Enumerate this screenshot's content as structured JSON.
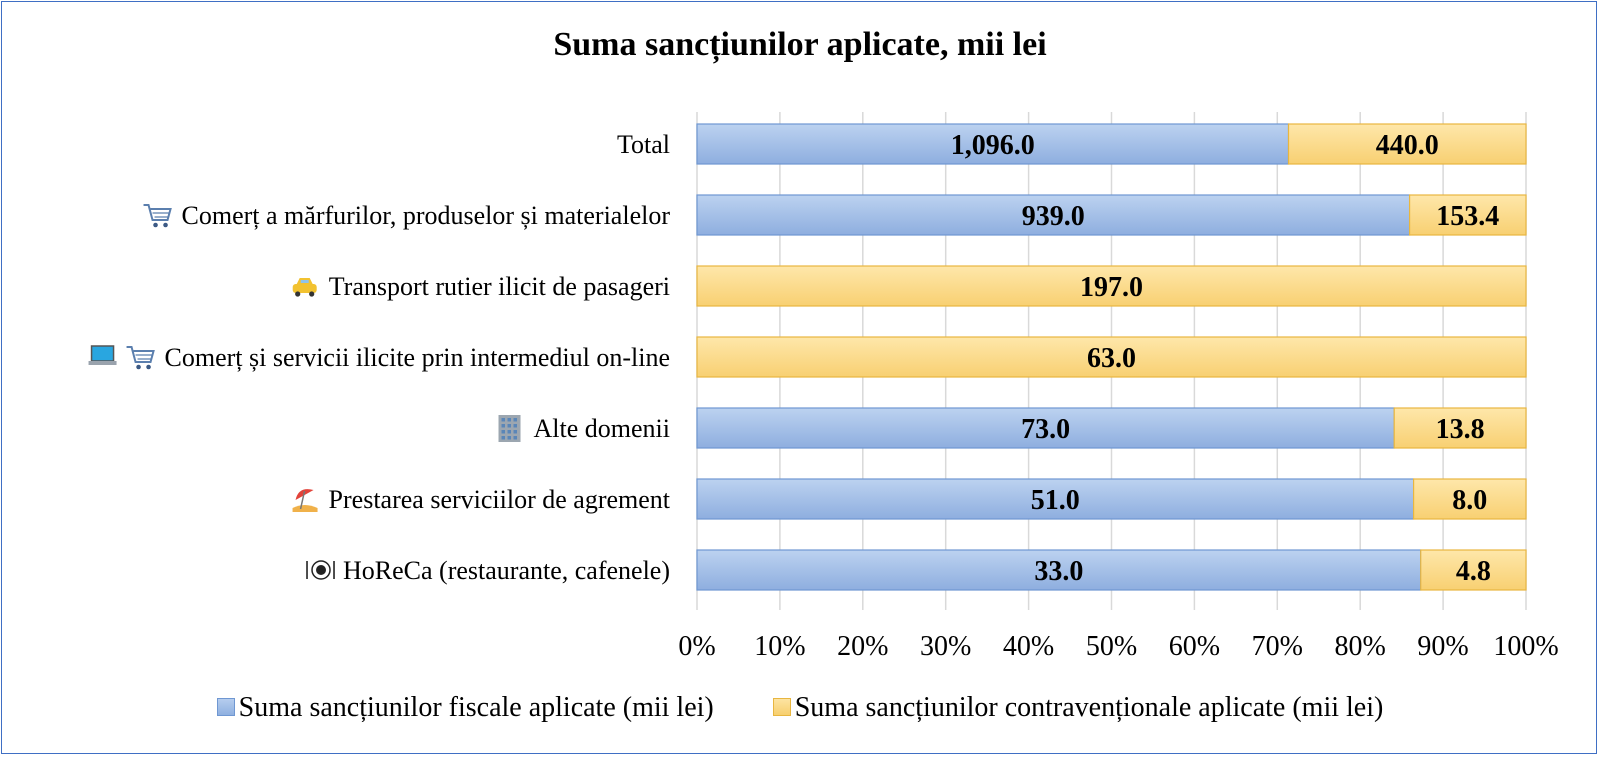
{
  "chart_data": {
    "type": "bar",
    "orientation": "horizontal",
    "stacked": "percent",
    "title": "Suma sancțiunilor aplicate, mii lei",
    "categories": [
      {
        "label": "Total",
        "icon": ""
      },
      {
        "label": "Comerț a mărfurilor, produselor și materialelor",
        "icon": "shopping-cart-icon"
      },
      {
        "label": "Transport rutier ilicit de pasageri",
        "icon": "taxi-icon"
      },
      {
        "label": "Comerț și servicii ilicite prin intermediul on-line",
        "icon": "laptop-cart-icon"
      },
      {
        "label": "Alte domenii",
        "icon": "office-building-icon"
      },
      {
        "label": "Prestarea serviciilor de agrement",
        "icon": "beach-umbrella-icon"
      },
      {
        "label": "HoReCa (restaurante, cafenele)",
        "icon": "plate-cutlery-icon"
      }
    ],
    "series": [
      {
        "name": "Suma sancțiunilor fiscale aplicate (mii lei)",
        "color": "#9dbde8",
        "values": [
          1096.0,
          939.0,
          0,
          0,
          73.0,
          51.0,
          33.0
        ],
        "labels": [
          "1,096.0",
          "939.0",
          "",
          "",
          "73.0",
          "51.0",
          "33.0"
        ]
      },
      {
        "name": "Suma sancțiunilor contravenționale aplicate (mii lei)",
        "color": "#fbd98a",
        "values": [
          440.0,
          153.4,
          197.0,
          63.0,
          13.8,
          8.0,
          4.8
        ],
        "labels": [
          "440.0",
          "153.4",
          "197.0",
          "63.0",
          "13.8",
          "8.0",
          "4.8"
        ]
      }
    ],
    "xticks": [
      "0%",
      "10%",
      "20%",
      "30%",
      "40%",
      "50%",
      "60%",
      "70%",
      "80%",
      "90%",
      "100%"
    ],
    "xlim": [
      0,
      100
    ],
    "grid": true,
    "legend_position": "bottom"
  }
}
